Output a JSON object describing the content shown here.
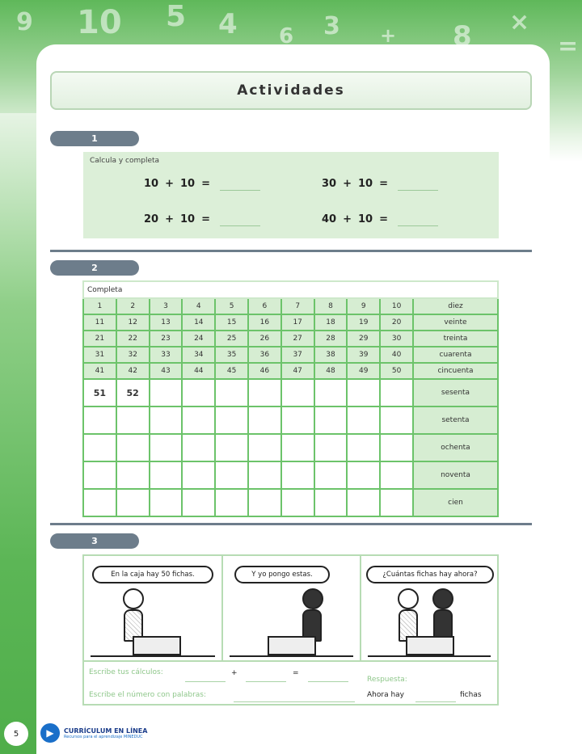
{
  "page": {
    "title": "Actividades",
    "page_number": "5",
    "brand_colors": {
      "green": "#5cb656",
      "slate": "#6d7d8b",
      "light_green": "#dcefd8"
    }
  },
  "header_decoration": [
    "9",
    "10",
    "5",
    "4",
    "6",
    "3",
    "+",
    "8",
    "×",
    "="
  ],
  "section1": {
    "number": "1",
    "instruction": "Calcula y completa",
    "equations": [
      {
        "a": "10",
        "op": "+",
        "b": "10",
        "eq": "="
      },
      {
        "a": "30",
        "op": "+",
        "b": "10",
        "eq": "="
      },
      {
        "a": "20",
        "op": "+",
        "b": "10",
        "eq": "="
      },
      {
        "a": "40",
        "op": "+",
        "b": "10",
        "eq": "="
      }
    ]
  },
  "section2": {
    "number": "2",
    "instruction": "Completa",
    "rows": [
      {
        "cells": [
          "1",
          "2",
          "3",
          "4",
          "5",
          "6",
          "7",
          "8",
          "9",
          "10"
        ],
        "word": "diez"
      },
      {
        "cells": [
          "11",
          "12",
          "13",
          "14",
          "15",
          "16",
          "17",
          "18",
          "19",
          "20"
        ],
        "word": "veinte"
      },
      {
        "cells": [
          "21",
          "22",
          "23",
          "24",
          "25",
          "26",
          "27",
          "28",
          "29",
          "30"
        ],
        "word": "treinta"
      },
      {
        "cells": [
          "31",
          "32",
          "33",
          "34",
          "35",
          "36",
          "37",
          "38",
          "39",
          "40"
        ],
        "word": "cuarenta"
      },
      {
        "cells": [
          "41",
          "42",
          "43",
          "44",
          "45",
          "46",
          "47",
          "48",
          "49",
          "50"
        ],
        "word": "cincuenta"
      },
      {
        "cells": [
          "51",
          "52",
          "",
          "",
          "",
          "",
          "",
          "",
          "",
          ""
        ],
        "word": "sesenta"
      },
      {
        "cells": [
          "",
          "",
          "",
          "",
          "",
          "",
          "",
          "",
          "",
          ""
        ],
        "word": "setenta"
      },
      {
        "cells": [
          "",
          "",
          "",
          "",
          "",
          "",
          "",
          "",
          "",
          ""
        ],
        "word": "ochenta"
      },
      {
        "cells": [
          "",
          "",
          "",
          "",
          "",
          "",
          "",
          "",
          "",
          ""
        ],
        "word": "noventa"
      },
      {
        "cells": [
          "",
          "",
          "",
          "",
          "",
          "",
          "",
          "",
          "",
          ""
        ],
        "word": "cien"
      }
    ]
  },
  "section3": {
    "number": "3",
    "bubbles": [
      "En la caja hay 50 fichas.",
      "Y yo pongo estas.",
      "¿Cuántas fichas hay ahora?"
    ],
    "calc_label": "Escribe tus cálculos:",
    "plus": "+",
    "equals": "=",
    "words_label": "Escribe el número con palabras:",
    "answer_label": "Respuesta:",
    "answer_prefix": "Ahora hay",
    "answer_suffix": "fichas"
  },
  "footer": {
    "logo_title": "CURRÍCULUM EN LÍNEA",
    "logo_subtitle": "Recursos para el aprendizaje MINEDUC"
  }
}
